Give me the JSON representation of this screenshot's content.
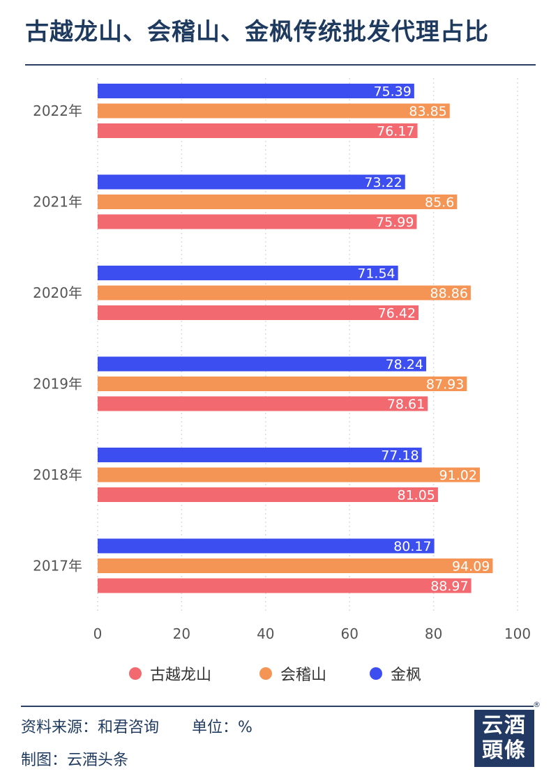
{
  "title": "古越龙山、会稽山、金枫传统批发代理占比",
  "footer": {
    "source_label": "资料来源：和君咨询",
    "unit_label": "单位：%",
    "credit_label": "制图：云酒头条",
    "logo_line1": "云酒",
    "logo_line2": "頭條",
    "logo_mark": "®"
  },
  "colors": {
    "古越龙山": "#f2696f",
    "会稽山": "#f59555",
    "金枫": "#3d4ef0",
    "grid": "#dcdcdc",
    "axis_text": "#555555",
    "label_text": "#ffffff"
  },
  "chart_data": {
    "type": "bar",
    "orientation": "horizontal",
    "title": "古越龙山、会稽山、金枫传统批发代理占比",
    "categories": [
      "2022年",
      "2021年",
      "2020年",
      "2019年",
      "2018年",
      "2017年"
    ],
    "series": [
      {
        "name": "金枫",
        "values": [
          75.39,
          73.22,
          71.54,
          78.24,
          77.18,
          80.17
        ]
      },
      {
        "name": "会稽山",
        "values": [
          83.85,
          85.6,
          88.86,
          87.93,
          91.02,
          94.09
        ]
      },
      {
        "name": "古越龙山",
        "values": [
          76.17,
          75.99,
          76.42,
          78.61,
          81.05,
          88.97
        ]
      }
    ],
    "xlim": [
      0,
      100
    ],
    "xticks": [
      0,
      20,
      40,
      60,
      80,
      100
    ],
    "xlabel": "",
    "ylabel": "",
    "grid": "vertical-dashed",
    "legend": [
      "古越龙山",
      "会稽山",
      "金枫"
    ],
    "legend_position": "bottom-center"
  }
}
